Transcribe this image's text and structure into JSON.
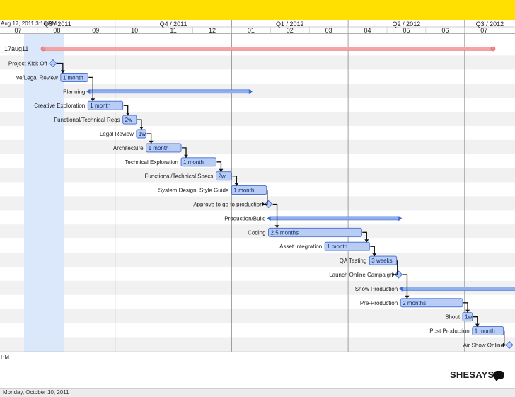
{
  "header": {
    "timestamp": "Aug 17, 2011 3:16 PM",
    "quarters": [
      "Q3 / 2011",
      "Q4 / 2011",
      "Q1 / 2012",
      "Q2 / 2012",
      "Q3 / 2012"
    ],
    "months": [
      "07",
      "08",
      "09",
      "10",
      "11",
      "12",
      "01",
      "02",
      "03",
      "04",
      "05",
      "06",
      "07"
    ]
  },
  "project_label": "_17aug11",
  "tasks": [
    {
      "name": "Project Kick Off",
      "type": "milestone",
      "start": 8.4
    },
    {
      "name": "ve/Legal Review",
      "type": "task",
      "start": 8.6,
      "end": 9.3,
      "label": "1 month"
    },
    {
      "name": "Planning",
      "type": "group",
      "start": 9.3,
      "end": 13.5
    },
    {
      "name": "Creative Exploration",
      "type": "task",
      "start": 9.3,
      "end": 10.2,
      "label": "1 month"
    },
    {
      "name": "Functional/Technical Reqs",
      "type": "task",
      "start": 10.2,
      "end": 10.55,
      "label": "2w"
    },
    {
      "name": "Legal Review",
      "type": "task",
      "start": 10.55,
      "end": 10.8,
      "label": "1w"
    },
    {
      "name": "Architecture",
      "type": "task",
      "start": 10.8,
      "end": 11.7,
      "label": "1 month"
    },
    {
      "name": "Technical Exploration",
      "type": "task",
      "start": 11.7,
      "end": 12.6,
      "label": "1 month"
    },
    {
      "name": "Functional/Technical Specs",
      "type": "task",
      "start": 12.6,
      "end": 13.0,
      "label": "2w"
    },
    {
      "name": "System Design, Style Guide",
      "type": "task",
      "start": 13.0,
      "end": 13.9,
      "label": "1 month"
    },
    {
      "name": "Approve to go to production",
      "type": "milestone",
      "start": 13.95
    },
    {
      "name": "Production/Build",
      "type": "group",
      "start": 13.95,
      "end": 17.35
    },
    {
      "name": "Coding",
      "type": "task",
      "start": 13.95,
      "end": 16.35,
      "label": "2.5 months"
    },
    {
      "name": "Asset Integration",
      "type": "task",
      "start": 15.4,
      "end": 16.55,
      "label": "1 month"
    },
    {
      "name": "QA Testing",
      "type": "task",
      "start": 16.55,
      "end": 17.25,
      "label": "3 weeks"
    },
    {
      "name": "Launch Online Campaign",
      "type": "milestone",
      "start": 17.3
    },
    {
      "name": "Show Production",
      "type": "group",
      "start": 17.35,
      "end": 21.0
    },
    {
      "name": "Pre-Production",
      "type": "task",
      "start": 17.35,
      "end": 18.95,
      "label": "2 months"
    },
    {
      "name": "Shoot",
      "type": "task",
      "start": 18.95,
      "end": 19.2,
      "label": "1w"
    },
    {
      "name": "Post Production",
      "type": "task",
      "start": 19.2,
      "end": 20.0,
      "label": "1 month"
    },
    {
      "name": "Air Show Online",
      "type": "milestone",
      "start": 20.15
    }
  ],
  "footer": {
    "pm_label": "PM",
    "date": "Monday, October 10, 2011",
    "logo": "SHESAYS"
  },
  "colors": {
    "bar_fill": "#b9cdf4",
    "bar_stroke": "#3d6ad6",
    "group_fill": "#8fb0ee",
    "project_bar": "#f5a3a3",
    "highlight_band": "#dbe8fb",
    "topbar": "#ffe000"
  }
}
